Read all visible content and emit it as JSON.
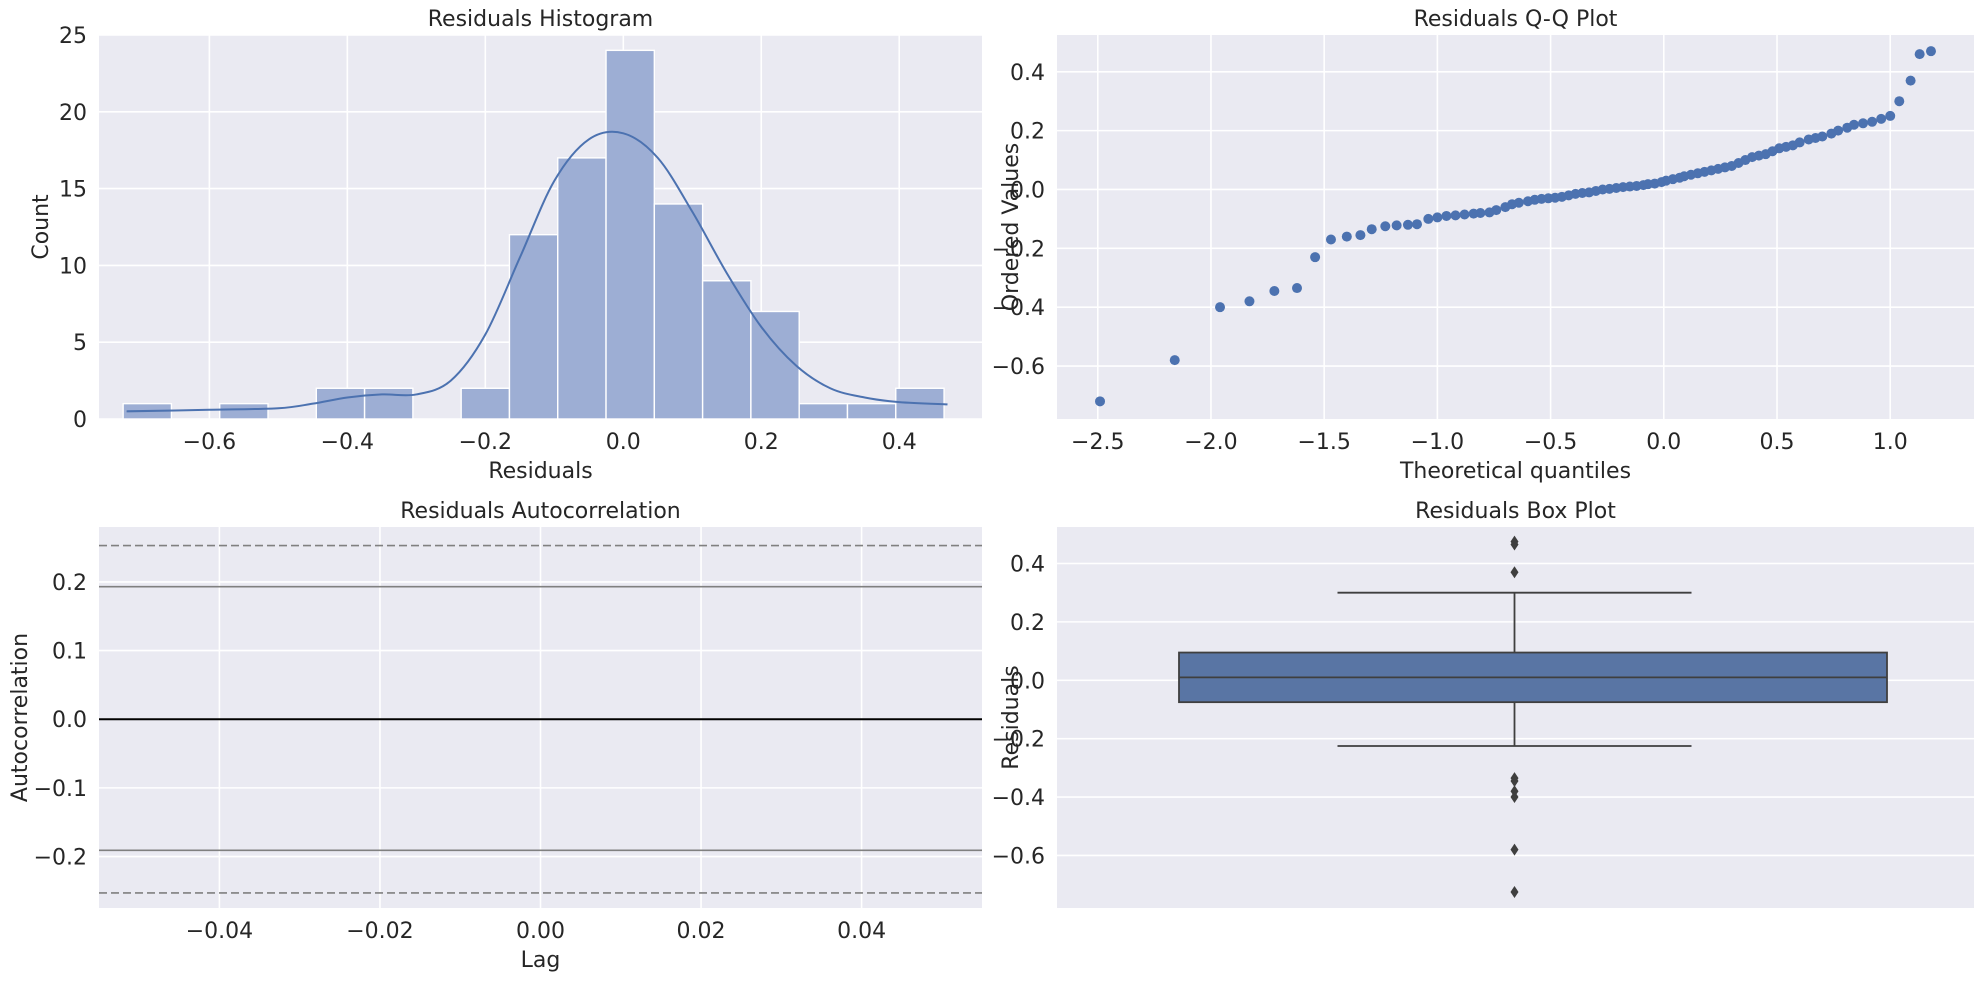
{
  "chart_data": [
    {
      "id": "hist",
      "type": "bar",
      "title": "Residuals Histogram",
      "xlabel": "Residuals",
      "ylabel": "Count",
      "xlim": [
        -0.76,
        0.52
      ],
      "ylim": [
        0,
        25
      ],
      "xticks": [
        -0.6,
        -0.4,
        -0.2,
        0.0,
        0.2,
        0.4
      ],
      "xtick_labels": [
        "−0.6",
        "−0.4",
        "−0.2",
        "0.0",
        "0.2",
        "0.4"
      ],
      "yticks": [
        0,
        5,
        10,
        15,
        20,
        25
      ],
      "ytick_labels": [
        "0",
        "5",
        "10",
        "15",
        "20",
        "25"
      ],
      "bin_edges": [
        -0.725,
        -0.655,
        -0.585,
        -0.515,
        -0.445,
        -0.375,
        -0.305,
        -0.235,
        -0.165,
        -0.095,
        -0.025,
        0.045,
        0.115,
        0.185,
        0.255,
        0.325,
        0.395,
        0.465
      ],
      "counts": [
        1,
        0,
        1,
        0,
        2,
        2,
        0,
        2,
        12,
        17,
        24,
        14,
        9,
        7,
        1,
        1,
        2
      ],
      "kde": {
        "x": [
          -0.72,
          -0.6,
          -0.5,
          -0.45,
          -0.4,
          -0.35,
          -0.3,
          -0.25,
          -0.2,
          -0.15,
          -0.1,
          -0.05,
          0.0,
          0.05,
          0.1,
          0.15,
          0.2,
          0.25,
          0.3,
          0.35,
          0.4,
          0.47
        ],
        "y": [
          0.5,
          0.6,
          0.7,
          1.0,
          1.4,
          1.6,
          1.6,
          2.5,
          5.5,
          10.5,
          15.5,
          18.2,
          18.6,
          17.0,
          13.5,
          9.5,
          6.0,
          3.5,
          2.0,
          1.4,
          1.1,
          0.95
        ]
      },
      "colors": {
        "bar": "#9daed4",
        "kde": "#4c72b0"
      }
    },
    {
      "id": "qq",
      "type": "scatter",
      "title": "Residuals Q-Q Plot",
      "xlabel": "Theoretical quantiles",
      "ylabel": "Ordered Values",
      "xlim": [
        -2.68,
        1.37
      ],
      "ylim": [
        -0.78,
        0.525
      ],
      "xticks": [
        -2.5,
        -2.0,
        -1.5,
        -1.0,
        -0.5,
        0.0,
        0.5,
        1.0
      ],
      "xtick_labels": [
        "−2.5",
        "−2.0",
        "−1.5",
        "−1.0",
        "−0.5",
        "0.0",
        "0.5",
        "1.0"
      ],
      "yticks": [
        -0.6,
        -0.4,
        -0.2,
        0.0,
        0.2,
        0.4
      ],
      "ytick_labels": [
        "−0.6",
        "−0.4",
        "−0.2",
        "0.0",
        "0.2",
        "0.4"
      ],
      "x": [
        -2.49,
        -2.16,
        -1.96,
        -1.83,
        -1.72,
        -1.62,
        -1.54,
        -1.47,
        -1.4,
        -1.34,
        -1.29,
        -1.23,
        -1.18,
        -1.13,
        -1.09,
        -1.04,
        -1.0,
        -0.96,
        -0.92,
        -0.88,
        -0.84,
        -0.81,
        -0.77,
        -0.74,
        -0.7,
        -0.67,
        -0.64,
        -0.6,
        -0.57,
        -0.54,
        -0.51,
        -0.48,
        -0.45,
        -0.42,
        -0.39,
        -0.36,
        -0.33,
        -0.3,
        -0.27,
        -0.24,
        -0.21,
        -0.18,
        -0.15,
        -0.12,
        -0.09,
        -0.07,
        -0.04,
        -0.01,
        0.01,
        0.04,
        0.07,
        0.09,
        0.12,
        0.15,
        0.18,
        0.21,
        0.24,
        0.27,
        0.3,
        0.33,
        0.36,
        0.39,
        0.42,
        0.45,
        0.48,
        0.51,
        0.54,
        0.57,
        0.6,
        0.64,
        0.67,
        0.7,
        0.74,
        0.77,
        0.81,
        0.84,
        0.88,
        0.92,
        0.96,
        1.0,
        1.04,
        1.09,
        1.13,
        1.18
      ],
      "y": [
        -0.72,
        -0.58,
        -0.4,
        -0.38,
        -0.345,
        -0.335,
        -0.23,
        -0.17,
        -0.16,
        -0.155,
        -0.135,
        -0.125,
        -0.122,
        -0.12,
        -0.118,
        -0.1,
        -0.095,
        -0.09,
        -0.088,
        -0.085,
        -0.082,
        -0.08,
        -0.078,
        -0.07,
        -0.06,
        -0.05,
        -0.045,
        -0.04,
        -0.035,
        -0.032,
        -0.03,
        -0.028,
        -0.025,
        -0.02,
        -0.015,
        -0.012,
        -0.01,
        -0.005,
        0.0,
        0.002,
        0.005,
        0.008,
        0.01,
        0.012,
        0.015,
        0.018,
        0.02,
        0.025,
        0.03,
        0.035,
        0.04,
        0.045,
        0.05,
        0.055,
        0.06,
        0.065,
        0.07,
        0.075,
        0.08,
        0.09,
        0.1,
        0.11,
        0.115,
        0.12,
        0.13,
        0.14,
        0.145,
        0.15,
        0.16,
        0.17,
        0.175,
        0.18,
        0.19,
        0.2,
        0.21,
        0.22,
        0.225,
        0.23,
        0.24,
        0.25,
        0.3,
        0.37,
        0.46,
        0.47
      ],
      "colors": {
        "point": "#4c72b0"
      }
    },
    {
      "id": "acf",
      "type": "line",
      "title": "Residuals Autocorrelation",
      "xlabel": "Lag",
      "ylabel": "Autocorrelation",
      "xlim": [
        -0.055,
        0.055
      ],
      "ylim": [
        -0.275,
        0.28
      ],
      "xticks": [
        -0.04,
        -0.02,
        0.0,
        0.02,
        0.04
      ],
      "xtick_labels": [
        "−0.04",
        "−0.02",
        "0.00",
        "0.02",
        "0.04"
      ],
      "yticks": [
        -0.2,
        -0.1,
        0.0,
        0.1,
        0.2
      ],
      "ytick_labels": [
        "−0.2",
        "−0.1",
        "0.0",
        "0.1",
        "0.2"
      ],
      "hlines": [
        {
          "y": 0.0,
          "style": "solid",
          "color": "#000000",
          "width": 2
        },
        {
          "y": 0.193,
          "style": "solid",
          "color": "#808080",
          "width": 1.6
        },
        {
          "y": -0.191,
          "style": "solid",
          "color": "#808080",
          "width": 1.6
        },
        {
          "y": 0.253,
          "style": "dashed",
          "color": "#808080",
          "width": 1.6
        },
        {
          "y": -0.253,
          "style": "dashed",
          "color": "#808080",
          "width": 1.6
        }
      ]
    },
    {
      "id": "box",
      "type": "box",
      "title": "Residuals Box Plot",
      "xlabel": "",
      "ylabel": "Residuals",
      "ylim": [
        -0.78,
        0.525
      ],
      "yticks": [
        -0.6,
        -0.4,
        -0.2,
        0.0,
        0.2,
        0.4
      ],
      "ytick_labels": [
        "−0.6",
        "−0.4",
        "−0.2",
        "0.0",
        "0.2",
        "0.4"
      ],
      "q1": -0.075,
      "median": 0.01,
      "q3": 0.095,
      "whisker_low": -0.225,
      "whisker_high": 0.3,
      "outliers": [
        0.475,
        0.465,
        0.37,
        -0.335,
        -0.345,
        -0.38,
        -0.4,
        -0.58,
        -0.725
      ],
      "colors": {
        "box": "#5975a4",
        "line": "#3f3f3f"
      }
    }
  ]
}
